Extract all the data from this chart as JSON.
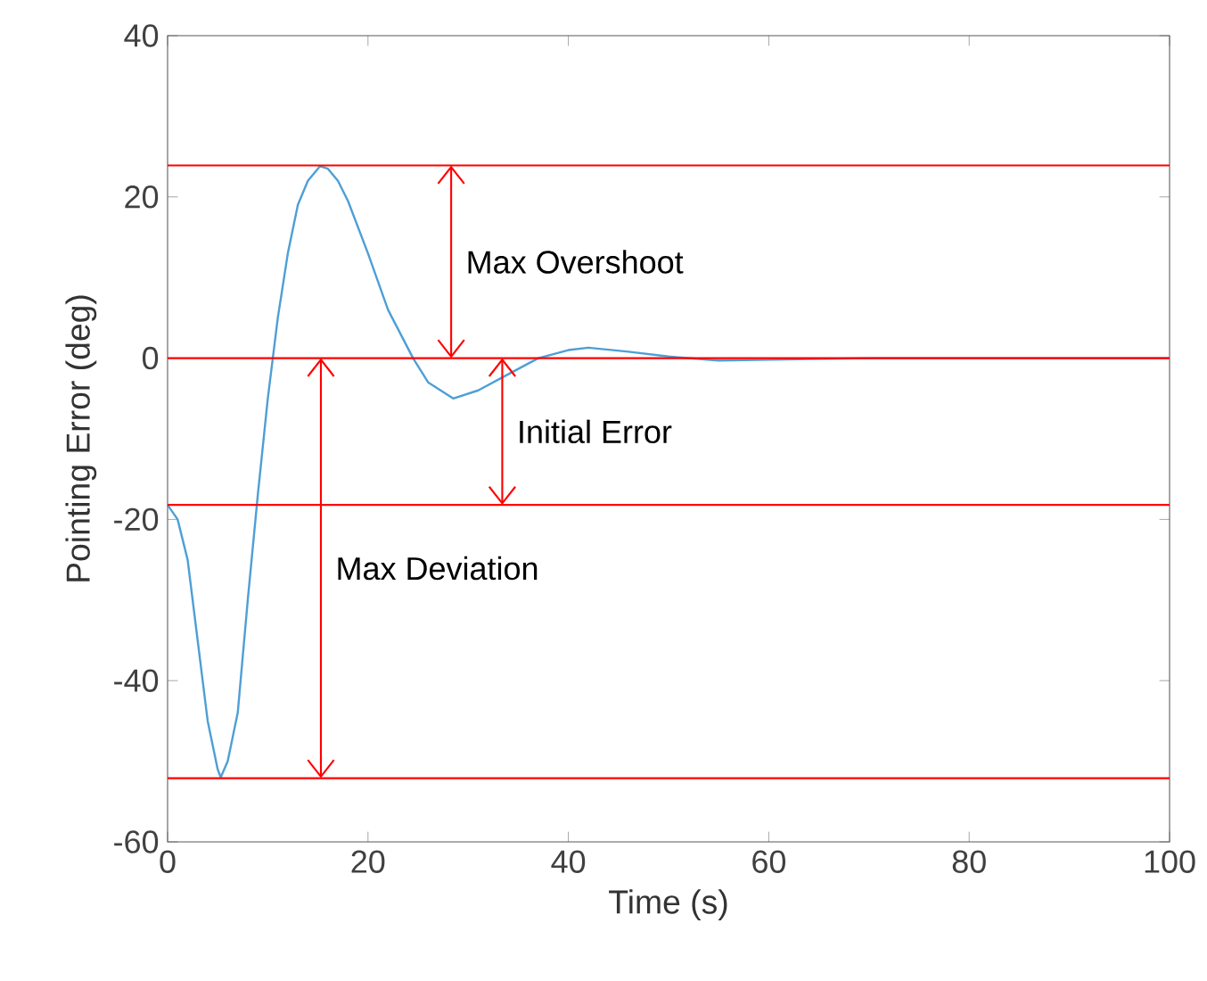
{
  "chart_data": {
    "type": "line",
    "xlabel": "Time (s)",
    "ylabel": "Pointing Error (deg)",
    "xlim": [
      0,
      100
    ],
    "ylim": [
      -60,
      40
    ],
    "xticks": [
      0,
      20,
      40,
      60,
      80,
      100
    ],
    "yticks": [
      -60,
      -40,
      -20,
      0,
      20,
      40
    ],
    "grid": false,
    "marker": "none",
    "line_style": "solid",
    "series": [
      {
        "color": "#4d9fd6",
        "x": [
          0,
          1,
          2,
          3,
          4,
          5,
          5.3,
          6,
          7,
          8,
          9,
          10,
          10.5,
          11,
          12,
          13,
          14,
          15.2,
          16,
          17,
          18,
          20,
          22,
          24.5,
          26,
          28.5,
          31,
          34,
          37,
          40,
          42,
          46,
          50,
          55,
          60,
          70,
          80,
          100
        ],
        "values": [
          -18.2,
          -20,
          -25,
          -35,
          -45,
          -51,
          -52,
          -50,
          -44,
          -30,
          -17,
          -5,
          0,
          5,
          13,
          19,
          22,
          23.8,
          23.5,
          22,
          19.5,
          13,
          6,
          0,
          -3,
          -5,
          -4,
          -2,
          0,
          1,
          1.3,
          0.8,
          0.2,
          -0.3,
          -0.2,
          0,
          0,
          0
        ]
      }
    ],
    "ref_lines": [
      {
        "axis": "y",
        "value": 23.9,
        "color": "#ff0000"
      },
      {
        "axis": "y",
        "value": 0,
        "color": "#ff0000"
      },
      {
        "axis": "y",
        "value": -18.2,
        "color": "#ff0000"
      },
      {
        "axis": "y",
        "value": -52.1,
        "color": "#ff0000"
      }
    ],
    "annotations": [
      "Max Overshoot",
      "Initial Error",
      "Max Deviation"
    ]
  }
}
